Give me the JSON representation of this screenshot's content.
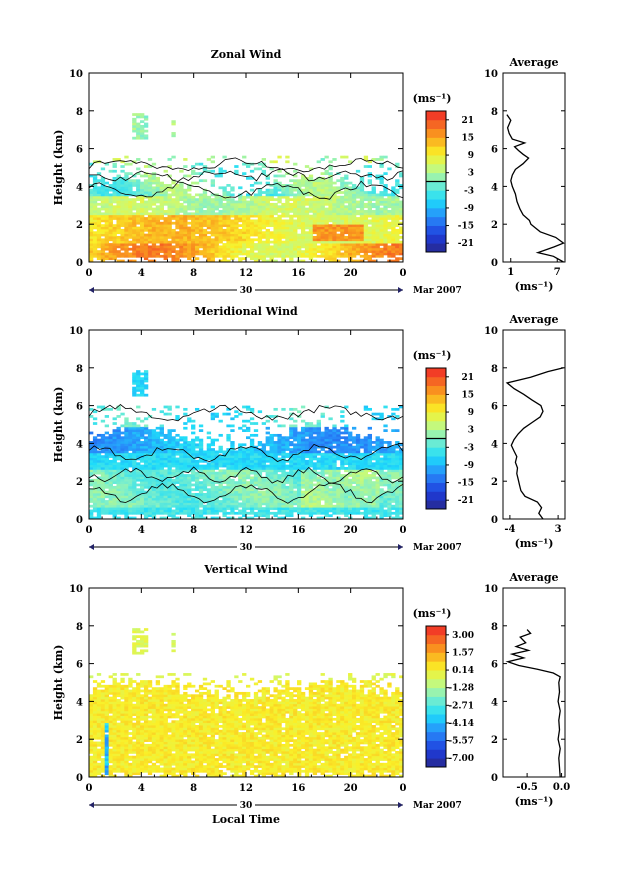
{
  "chart_data": [
    {
      "type": "heatmap",
      "title": "Zonal Wind",
      "ylabel": "Height (km)",
      "xlabel": "",
      "x_ticks": [
        "0",
        "4",
        "8",
        "12",
        "16",
        "20",
        "0"
      ],
      "y_ticks": [
        "0",
        "2",
        "4",
        "6",
        "8",
        "10"
      ],
      "xlim": [
        0,
        24
      ],
      "ylim": [
        0,
        10
      ],
      "date_day": "30",
      "date_label": "Mar 2007",
      "colorbar_unit": "(ms⁻¹)",
      "colorbar_ticks": [
        "21",
        "15",
        "9",
        "3",
        "-3",
        "-9",
        "-15",
        "-21"
      ],
      "colorbar_range": [
        -24,
        24
      ],
      "contour_level": 0,
      "fields": {
        "cover_base": 4.0,
        "cover_wave": 0.5,
        "cover_top": 5.6,
        "mode": "zonal"
      },
      "average": {
        "title": "Average",
        "xlabel": "(ms⁻¹)",
        "x_ticks": [
          "1",
          "7"
        ],
        "xlim": [
          0,
          8
        ],
        "y_ticks": [
          "0",
          "2",
          "4",
          "6",
          "8",
          "10"
        ],
        "profile": [
          [
            0.0,
            7.8
          ],
          [
            0.3,
            6.5
          ],
          [
            0.5,
            4.5
          ],
          [
            0.8,
            6.6
          ],
          [
            1.0,
            7.8
          ],
          [
            1.3,
            6.8
          ],
          [
            1.6,
            4.8
          ],
          [
            1.8,
            4.2
          ],
          [
            2.0,
            3.6
          ],
          [
            2.2,
            3.4
          ],
          [
            2.5,
            2.6
          ],
          [
            2.8,
            2.2
          ],
          [
            3.2,
            1.8
          ],
          [
            3.6,
            1.6
          ],
          [
            4.0,
            1.2
          ],
          [
            4.3,
            1.0
          ],
          [
            4.6,
            1.2
          ],
          [
            4.9,
            1.6
          ],
          [
            5.2,
            2.6
          ],
          [
            5.5,
            3.3
          ],
          [
            5.7,
            2.6
          ],
          [
            5.9,
            2.0
          ],
          [
            6.1,
            1.5
          ],
          [
            6.3,
            2.8
          ],
          [
            6.5,
            1.2
          ],
          [
            6.8,
            0.8
          ],
          [
            7.1,
            0.6
          ],
          [
            7.5,
            1.0
          ],
          [
            7.8,
            0.5
          ]
        ]
      }
    },
    {
      "type": "heatmap",
      "title": "Meridional Wind",
      "ylabel": "Height (km)",
      "xlabel": "",
      "x_ticks": [
        "0",
        "4",
        "8",
        "12",
        "16",
        "20",
        "0"
      ],
      "y_ticks": [
        "0",
        "2",
        "4",
        "6",
        "8",
        "10"
      ],
      "xlim": [
        0,
        24
      ],
      "ylim": [
        0,
        10
      ],
      "date_day": "30",
      "date_label": "Mar 2007",
      "colorbar_unit": "(ms⁻¹)",
      "colorbar_ticks": [
        "21",
        "15",
        "9",
        "3",
        "-3",
        "-9",
        "-15",
        "-21"
      ],
      "colorbar_range": [
        -24,
        24
      ],
      "contour_level": 0,
      "fields": {
        "cover_base": 4.3,
        "cover_wave": 0.6,
        "cover_top": 6.0,
        "mode": "meridional"
      },
      "average": {
        "title": "Average",
        "xlabel": "(ms⁻¹)",
        "x_ticks": [
          "-4",
          "3"
        ],
        "xlim": [
          -5,
          4
        ],
        "y_ticks": [
          "0",
          "2",
          "4",
          "6",
          "8",
          "10"
        ],
        "profile": [
          [
            0.0,
            0.8
          ],
          [
            0.3,
            0.2
          ],
          [
            0.6,
            0.6
          ],
          [
            0.9,
            0.0
          ],
          [
            1.2,
            -1.8
          ],
          [
            1.5,
            -2.4
          ],
          [
            1.8,
            -2.6
          ],
          [
            2.1,
            -2.8
          ],
          [
            2.4,
            -3.0
          ],
          [
            2.7,
            -2.9
          ],
          [
            3.0,
            -3.2
          ],
          [
            3.3,
            -3.0
          ],
          [
            3.6,
            -3.4
          ],
          [
            3.9,
            -3.8
          ],
          [
            4.2,
            -3.4
          ],
          [
            4.5,
            -2.8
          ],
          [
            4.8,
            -2.0
          ],
          [
            5.1,
            -0.8
          ],
          [
            5.4,
            0.4
          ],
          [
            5.7,
            0.8
          ],
          [
            6.0,
            0.5
          ],
          [
            6.3,
            -0.8
          ],
          [
            6.6,
            -2.0
          ],
          [
            6.9,
            -3.4
          ],
          [
            7.2,
            -4.4
          ],
          [
            7.5,
            -1.0
          ],
          [
            7.8,
            1.5
          ],
          [
            8.0,
            3.8
          ]
        ]
      }
    },
    {
      "type": "heatmap",
      "title": "Vertical Wind",
      "ylabel": "Height (km)",
      "xlabel": "Local Time",
      "x_ticks": [
        "0",
        "4",
        "8",
        "12",
        "16",
        "20",
        "0"
      ],
      "y_ticks": [
        "0",
        "2",
        "4",
        "6",
        "8",
        "10"
      ],
      "xlim": [
        0,
        24
      ],
      "ylim": [
        0,
        10
      ],
      "date_day": "30",
      "date_label": "Mar 2007",
      "colorbar_unit": "(ms⁻¹)",
      "colorbar_ticks": [
        "3.00",
        "1.57",
        "0.14",
        "-1.28",
        "-2.71",
        "-4.14",
        "-5.57",
        "-7.00"
      ],
      "colorbar_range": [
        -7.7,
        3.7
      ],
      "contour_level": null,
      "fields": {
        "cover_base": 4.6,
        "cover_wave": 0.3,
        "cover_top": 5.4,
        "mode": "vertical"
      },
      "average": {
        "title": "Average",
        "xlabel": "(ms⁻¹)",
        "x_ticks": [
          "-0.5",
          "0.0"
        ],
        "xlim": [
          -0.85,
          0.05
        ],
        "y_ticks": [
          "0",
          "2",
          "4",
          "6",
          "8",
          "10"
        ],
        "profile": [
          [
            0.0,
            -0.02
          ],
          [
            0.5,
            -0.03
          ],
          [
            1.0,
            -0.04
          ],
          [
            1.5,
            -0.02
          ],
          [
            2.0,
            -0.05
          ],
          [
            2.5,
            -0.03
          ],
          [
            3.0,
            -0.04
          ],
          [
            3.5,
            -0.02
          ],
          [
            4.0,
            -0.05
          ],
          [
            4.5,
            -0.03
          ],
          [
            5.0,
            -0.04
          ],
          [
            5.3,
            -0.02
          ],
          [
            5.5,
            -0.12
          ],
          [
            5.7,
            -0.35
          ],
          [
            5.9,
            -0.62
          ],
          [
            6.1,
            -0.78
          ],
          [
            6.3,
            -0.55
          ],
          [
            6.5,
            -0.72
          ],
          [
            6.7,
            -0.48
          ],
          [
            6.9,
            -0.66
          ],
          [
            7.1,
            -0.52
          ],
          [
            7.4,
            -0.6
          ],
          [
            7.6,
            -0.45
          ],
          [
            7.8,
            -0.5
          ]
        ]
      }
    }
  ]
}
